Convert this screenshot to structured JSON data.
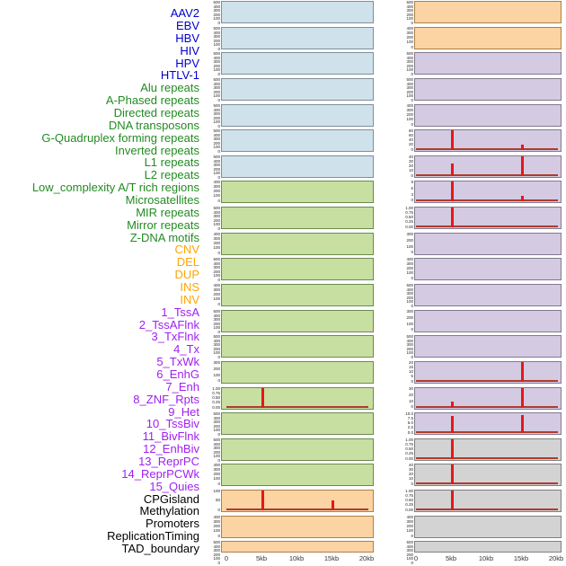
{
  "figure": {
    "background": "#ffffff",
    "colors": {
      "label_virus": "#0000cd",
      "label_repeat": "#228b22",
      "label_sv": "#ffa500",
      "label_chromatin": "#a020f0",
      "label_other": "#000000",
      "bg_blue": "#cfe2eb",
      "bg_green": "#c8dfa2",
      "bg_orange": "#fcd3a3",
      "bg_purple": "#d4cae2",
      "bg_gray": "#d3d3d3",
      "border_blue": "#7d8f99",
      "border_green": "#6b8a4e",
      "border_orange": "#ab8147",
      "border_purple": "#82798f",
      "border_gray": "#7f7f7f",
      "peak_red": "#e61717",
      "baseline_red": "#b03a2e"
    }
  },
  "chart_data": {
    "type": "line",
    "description": "Two columns of 22 mini aggregate-profile panels over a 0-20kb window; red curves sit at baseline 0 with sharp peaks at 5kb and/or 15kb in some panels.",
    "x_ticks": [
      "0",
      "5kb",
      "10kb",
      "15kb",
      "20kb"
    ],
    "x_range_kb": [
      0,
      20
    ],
    "panels": [
      {
        "label": "AAV2",
        "group": "virus",
        "column": "left",
        "bg": "blue",
        "yticks": [
          "500",
          "400",
          "300",
          "200",
          "100",
          "0"
        ],
        "baseline": false,
        "peaks": []
      },
      {
        "label": "EBV",
        "group": "virus",
        "column": "left",
        "bg": "blue",
        "yticks": [
          "500",
          "400",
          "300",
          "200",
          "100",
          "0"
        ],
        "baseline": false,
        "peaks": []
      },
      {
        "label": "HBV",
        "group": "virus",
        "column": "left",
        "bg": "blue",
        "yticks": [
          "500",
          "400",
          "300",
          "200",
          "100",
          "0"
        ],
        "baseline": false,
        "peaks": []
      },
      {
        "label": "HIV",
        "group": "virus",
        "column": "left",
        "bg": "blue",
        "yticks": [
          "500",
          "400",
          "300",
          "200",
          "100",
          "0"
        ],
        "baseline": false,
        "peaks": []
      },
      {
        "label": "HPV",
        "group": "virus",
        "column": "left",
        "bg": "blue",
        "yticks": [
          "500",
          "400",
          "300",
          "200",
          "100",
          "0"
        ],
        "baseline": false,
        "peaks": []
      },
      {
        "label": "HTLV-1",
        "group": "virus",
        "column": "left",
        "bg": "blue",
        "yticks": [
          "500",
          "400",
          "300",
          "200",
          "100",
          "0"
        ],
        "baseline": false,
        "peaks": []
      },
      {
        "label": "Alu repeats",
        "group": "repeat",
        "column": "left",
        "bg": "blue",
        "yticks": [
          "500",
          "400",
          "300",
          "200",
          "100",
          "0"
        ],
        "baseline": false,
        "peaks": []
      },
      {
        "label": "A-Phased repeats",
        "group": "repeat",
        "column": "left",
        "bg": "green",
        "yticks": [
          "400",
          "300",
          "200",
          "100",
          "0"
        ],
        "baseline": false,
        "peaks": []
      },
      {
        "label": "Directed repeats",
        "group": "repeat",
        "column": "left",
        "bg": "green",
        "yticks": [
          "500",
          "400",
          "300",
          "200",
          "100",
          "0"
        ],
        "baseline": false,
        "peaks": []
      },
      {
        "label": "DNA transposons",
        "group": "repeat",
        "column": "left",
        "bg": "green",
        "yticks": [
          "400",
          "300",
          "200",
          "100",
          "0"
        ],
        "baseline": false,
        "peaks": []
      },
      {
        "label": "G-Quadruplex forming repeats",
        "group": "repeat",
        "column": "left",
        "bg": "green",
        "yticks": [
          "500",
          "400",
          "300",
          "200",
          "100",
          "0"
        ],
        "baseline": false,
        "peaks": []
      },
      {
        "label": "Inverted repeats",
        "group": "repeat",
        "column": "left",
        "bg": "green",
        "yticks": [
          "400",
          "300",
          "200",
          "100",
          "0"
        ],
        "baseline": false,
        "peaks": []
      },
      {
        "label": "L1 repeats",
        "group": "repeat",
        "column": "left",
        "bg": "green",
        "yticks": [
          "500",
          "400",
          "300",
          "200",
          "100",
          "0"
        ],
        "baseline": false,
        "peaks": []
      },
      {
        "label": "L2 repeats",
        "group": "repeat",
        "column": "left",
        "bg": "green",
        "yticks": [
          "500",
          "400",
          "300",
          "200",
          "100",
          "0"
        ],
        "baseline": false,
        "peaks": []
      },
      {
        "label": "Low_complexity A/T rich regions",
        "group": "repeat",
        "column": "left",
        "bg": "green",
        "yticks": [
          "300",
          "200",
          "100",
          "0"
        ],
        "baseline": false,
        "peaks": []
      },
      {
        "label": "Microsatellites",
        "group": "repeat",
        "column": "left",
        "bg": "green",
        "yticks": [
          "1.00",
          "0.75",
          "0.50",
          "0.25",
          "0.00"
        ],
        "baseline": true,
        "peaks": [
          {
            "x": "5kb",
            "value": "1.00",
            "height_frac": 1.0
          }
        ]
      },
      {
        "label": "MIR repeats",
        "group": "repeat",
        "column": "left",
        "bg": "green",
        "yticks": [
          "500",
          "400",
          "300",
          "200",
          "100",
          "0"
        ],
        "baseline": false,
        "peaks": []
      },
      {
        "label": "Mirror repeats",
        "group": "repeat",
        "column": "left",
        "bg": "green",
        "yticks": [
          "500",
          "400",
          "300",
          "200",
          "100",
          "0"
        ],
        "baseline": false,
        "peaks": []
      },
      {
        "label": "Z-DNA motifs",
        "group": "repeat",
        "column": "left",
        "bg": "green",
        "yticks": [
          "400",
          "300",
          "200",
          "100",
          "0"
        ],
        "baseline": false,
        "peaks": []
      },
      {
        "label": "CNV",
        "group": "sv",
        "column": "left",
        "bg": "orange",
        "yticks": [
          "100",
          "50",
          "0"
        ],
        "baseline": true,
        "peaks": [
          {
            "x": "5kb",
            "value": "100",
            "height_frac": 1.0
          },
          {
            "x": "15kb",
            "value": "50",
            "height_frac": 0.5
          }
        ]
      },
      {
        "label": "DEL",
        "group": "sv",
        "column": "left",
        "bg": "orange",
        "yticks": [
          "400",
          "300",
          "200",
          "100",
          "0"
        ],
        "baseline": false,
        "peaks": []
      },
      {
        "label": "DUP",
        "group": "sv",
        "column": "left",
        "bg": "orange",
        "yticks": [
          "500",
          "400",
          "300",
          "200",
          "100",
          "0"
        ],
        "baseline": false,
        "peaks": []
      },
      {
        "label": "INS",
        "group": "sv",
        "column": "right",
        "bg": "orange",
        "yticks": [
          "500",
          "400",
          "300",
          "200",
          "100",
          "0"
        ],
        "baseline": false,
        "peaks": []
      },
      {
        "label": "INV",
        "group": "sv",
        "column": "right",
        "bg": "orange",
        "yticks": [
          "400",
          "300",
          "200",
          "100",
          "0"
        ],
        "baseline": false,
        "peaks": []
      },
      {
        "label": "1_TssA",
        "group": "chromatin",
        "column": "right",
        "bg": "purple",
        "yticks": [
          "500",
          "400",
          "300",
          "200",
          "100",
          "0"
        ],
        "baseline": false,
        "peaks": []
      },
      {
        "label": "2_TssAFlnk",
        "group": "chromatin",
        "column": "right",
        "bg": "purple",
        "yticks": [
          "500",
          "400",
          "300",
          "200",
          "100",
          "0"
        ],
        "baseline": false,
        "peaks": []
      },
      {
        "label": "3_TxFlnk",
        "group": "chromatin",
        "column": "right",
        "bg": "purple",
        "yticks": [
          "400",
          "300",
          "200",
          "100",
          "0"
        ],
        "baseline": false,
        "peaks": []
      },
      {
        "label": "4_Tx",
        "group": "chromatin",
        "column": "right",
        "bg": "purple",
        "yticks": [
          "80",
          "60",
          "40",
          "20",
          "0"
        ],
        "baseline": true,
        "peaks": [
          {
            "x": "5kb",
            "value": "80",
            "height_frac": 1.0
          },
          {
            "x": "15kb",
            "value": "22",
            "height_frac": 0.28
          }
        ]
      },
      {
        "label": "5_TxWk",
        "group": "chromatin",
        "column": "right",
        "bg": "purple",
        "yticks": [
          "40",
          "30",
          "20",
          "10",
          "0"
        ],
        "baseline": true,
        "peaks": [
          {
            "x": "5kb",
            "value": "26",
            "height_frac": 0.65
          },
          {
            "x": "15kb",
            "value": "40",
            "height_frac": 1.0
          }
        ]
      },
      {
        "label": "6_EnhG",
        "group": "chromatin",
        "column": "right",
        "bg": "purple",
        "yticks": [
          "9",
          "6",
          "3",
          "0"
        ],
        "baseline": true,
        "peaks": [
          {
            "x": "5kb",
            "value": "9",
            "height_frac": 1.0
          },
          {
            "x": "15kb",
            "value": "2.5",
            "height_frac": 0.28
          }
        ]
      },
      {
        "label": "7_Enh",
        "group": "chromatin",
        "column": "right",
        "bg": "purple",
        "yticks": [
          "1.00",
          "0.75",
          "0.50",
          "0.25",
          "0.00"
        ],
        "baseline": true,
        "peaks": [
          {
            "x": "5kb",
            "value": "1.00",
            "height_frac": 1.0
          }
        ]
      },
      {
        "label": "8_ZNF_Rpts",
        "group": "chromatin",
        "column": "right",
        "bg": "purple",
        "yticks": [
          "300",
          "200",
          "100",
          "0"
        ],
        "baseline": false,
        "peaks": []
      },
      {
        "label": "9_Het",
        "group": "chromatin",
        "column": "right",
        "bg": "purple",
        "yticks": [
          "400",
          "300",
          "200",
          "100",
          "0"
        ],
        "baseline": false,
        "peaks": []
      },
      {
        "label": "10_TssBiv",
        "group": "chromatin",
        "column": "right",
        "bg": "purple",
        "yticks": [
          "500",
          "400",
          "300",
          "200",
          "100",
          "0"
        ],
        "baseline": false,
        "peaks": []
      },
      {
        "label": "11_BivFlnk",
        "group": "chromatin",
        "column": "right",
        "bg": "purple",
        "yticks": [
          "300",
          "200",
          "100",
          "0"
        ],
        "baseline": false,
        "peaks": []
      },
      {
        "label": "12_EnhBiv",
        "group": "chromatin",
        "column": "right",
        "bg": "purple",
        "yticks": [
          "500",
          "400",
          "300",
          "200",
          "100",
          "0"
        ],
        "baseline": false,
        "peaks": []
      },
      {
        "label": "13_ReprPC",
        "group": "chromatin",
        "column": "right",
        "bg": "purple",
        "yticks": [
          "20",
          "15",
          "10",
          "5",
          "0"
        ],
        "baseline": true,
        "peaks": [
          {
            "x": "15kb",
            "value": "20",
            "height_frac": 1.0
          }
        ]
      },
      {
        "label": "14_ReprPCWk",
        "group": "chromatin",
        "column": "right",
        "bg": "purple",
        "yticks": [
          "30",
          "20",
          "10",
          "0"
        ],
        "baseline": true,
        "peaks": [
          {
            "x": "5kb",
            "value": "9",
            "height_frac": 0.3
          },
          {
            "x": "15kb",
            "value": "30",
            "height_frac": 1.0
          }
        ]
      },
      {
        "label": "15_Quies",
        "group": "chromatin",
        "column": "right",
        "bg": "purple",
        "yticks": [
          "10.0",
          "7.5",
          "5.0",
          "2.5",
          "0.0"
        ],
        "baseline": true,
        "peaks": [
          {
            "x": "5kb",
            "value": "8.5",
            "height_frac": 0.85
          },
          {
            "x": "15kb",
            "value": "9.0",
            "height_frac": 0.9
          }
        ]
      },
      {
        "label": "CPGisland",
        "group": "other",
        "column": "right",
        "bg": "gray",
        "yticks": [
          "1.00",
          "0.75",
          "0.50",
          "0.25",
          "0.00"
        ],
        "baseline": true,
        "peaks": [
          {
            "x": "5kb",
            "value": "1.00",
            "height_frac": 1.0
          }
        ]
      },
      {
        "label": "Methylation",
        "group": "other",
        "column": "right",
        "bg": "gray",
        "yticks": [
          "40",
          "30",
          "20",
          "10",
          "0"
        ],
        "baseline": true,
        "peaks": [
          {
            "x": "5kb",
            "value": "40",
            "height_frac": 1.0
          }
        ]
      },
      {
        "label": "Promoters",
        "group": "other",
        "column": "right",
        "bg": "gray",
        "yticks": [
          "1.00",
          "0.75",
          "0.50",
          "0.25",
          "0.00"
        ],
        "baseline": true,
        "peaks": [
          {
            "x": "5kb",
            "value": "1.00",
            "height_frac": 1.0
          }
        ]
      },
      {
        "label": "ReplicationTiming",
        "group": "other",
        "column": "right",
        "bg": "gray",
        "yticks": [
          "400",
          "300",
          "200",
          "100",
          "0"
        ],
        "baseline": false,
        "peaks": []
      },
      {
        "label": "TAD_boundary",
        "group": "other",
        "column": "right",
        "bg": "gray",
        "yticks": [
          "500",
          "400",
          "300",
          "200",
          "100",
          "0"
        ],
        "baseline": false,
        "peaks": []
      }
    ]
  }
}
